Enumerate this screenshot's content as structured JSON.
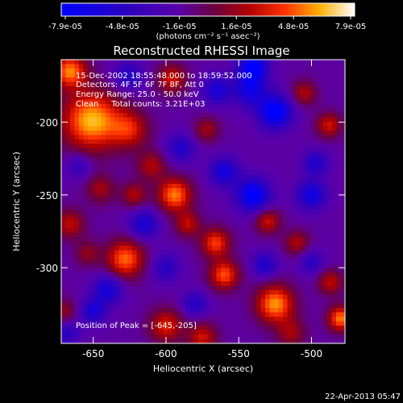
{
  "chart_data": {
    "type": "heatmap",
    "title": "Reconstructed RHESSI Image",
    "xlabel": "Heliocentric X (arcsec)",
    "ylabel": "Heliocentric Y (arcsec)",
    "xlim": [
      -672,
      -477
    ],
    "ylim": [
      -352,
      -157
    ],
    "x_ticks": [
      -650,
      -600,
      -550,
      -500
    ],
    "y_ticks": [
      -200,
      -250,
      -300
    ],
    "x_tick_labels": [
      "-650",
      "-600",
      "-550",
      "-500"
    ],
    "y_tick_labels": [
      "-200",
      "-250",
      "-300"
    ],
    "colorbar": {
      "min": -7.9e-05,
      "max": 7.9e-05,
      "tick_labels": [
        "-7.9e-05",
        "-4.8e-05",
        "-1.6e-05",
        "1.6e-05",
        "4.8e-05",
        "7.9e-05"
      ],
      "unit_label": "(photons cm⁻² s⁻¹ asec⁻²)"
    },
    "annotations": {
      "time_range": "15-Dec-2002 18:55:48.000 to 18:59:52.000",
      "detectors": "Detectors: 4F 5F 6F 7F 8F, Att 0",
      "energy_range": "Energy Range: 25.0 - 50.0 keV",
      "clean_counts": "Clean     Total counts: 3.21E+03",
      "peak": "Position of Peak = [-645,-205]"
    },
    "peak_position": [
      -645,
      -205
    ],
    "sources": [
      {
        "x": -651,
        "y": -199,
        "amp": 0.98,
        "w": 14
      },
      {
        "x": -666,
        "y": -165,
        "amp": 0.85,
        "w": 8
      },
      {
        "x": -625,
        "y": -205,
        "amp": 0.55,
        "w": 9
      },
      {
        "x": -610,
        "y": -230,
        "amp": 0.45,
        "w": 7
      },
      {
        "x": -594,
        "y": -250,
        "amp": 0.85,
        "w": 8
      },
      {
        "x": -596,
        "y": -170,
        "amp": 0.55,
        "w": 7
      },
      {
        "x": -622,
        "y": -250,
        "amp": 0.45,
        "w": 6
      },
      {
        "x": -645,
        "y": -246,
        "amp": 0.4,
        "w": 7
      },
      {
        "x": -666,
        "y": -270,
        "amp": 0.5,
        "w": 7
      },
      {
        "x": -628,
        "y": -294,
        "amp": 0.8,
        "w": 9
      },
      {
        "x": -654,
        "y": -290,
        "amp": 0.35,
        "w": 6
      },
      {
        "x": -566,
        "y": -283,
        "amp": 0.7,
        "w": 7
      },
      {
        "x": -560,
        "y": -305,
        "amp": 0.75,
        "w": 7
      },
      {
        "x": -530,
        "y": -268,
        "amp": 0.55,
        "w": 6
      },
      {
        "x": -510,
        "y": -283,
        "amp": 0.45,
        "w": 6
      },
      {
        "x": -525,
        "y": -325,
        "amp": 0.9,
        "w": 9
      },
      {
        "x": -600,
        "y": -340,
        "amp": 0.6,
        "w": 8
      },
      {
        "x": -575,
        "y": -348,
        "amp": 0.55,
        "w": 7
      },
      {
        "x": -514,
        "y": -345,
        "amp": 0.4,
        "w": 7
      },
      {
        "x": -480,
        "y": -335,
        "amp": 0.85,
        "w": 6
      },
      {
        "x": -487,
        "y": -310,
        "amp": 0.5,
        "w": 6
      },
      {
        "x": -505,
        "y": -180,
        "amp": 0.45,
        "w": 6
      },
      {
        "x": -488,
        "y": -202,
        "amp": 0.55,
        "w": 6
      },
      {
        "x": -572,
        "y": -205,
        "amp": 0.4,
        "w": 6
      },
      {
        "x": -585,
        "y": -270,
        "amp": 0.5,
        "w": 6
      },
      {
        "x": -670,
        "y": -330,
        "amp": 0.35,
        "w": 6
      },
      {
        "x": -540,
        "y": -162,
        "amp": -0.85,
        "w": 7
      },
      {
        "x": -525,
        "y": -193,
        "amp": -0.9,
        "w": 8
      },
      {
        "x": -542,
        "y": -178,
        "amp": -0.6,
        "w": 8
      },
      {
        "x": -565,
        "y": -178,
        "amp": -0.55,
        "w": 7
      },
      {
        "x": -540,
        "y": -250,
        "amp": -0.85,
        "w": 8
      },
      {
        "x": -560,
        "y": -234,
        "amp": -0.6,
        "w": 7
      },
      {
        "x": -500,
        "y": -250,
        "amp": -0.65,
        "w": 7
      },
      {
        "x": -497,
        "y": -228,
        "amp": -0.5,
        "w": 6
      },
      {
        "x": -590,
        "y": -218,
        "amp": -0.45,
        "w": 7
      },
      {
        "x": -615,
        "y": -270,
        "amp": -0.55,
        "w": 7
      },
      {
        "x": -640,
        "y": -315,
        "amp": -0.6,
        "w": 7
      },
      {
        "x": -650,
        "y": -330,
        "amp": -0.55,
        "w": 6
      },
      {
        "x": -600,
        "y": -300,
        "amp": -0.4,
        "w": 7
      },
      {
        "x": -580,
        "y": -325,
        "amp": -0.45,
        "w": 6
      },
      {
        "x": -532,
        "y": -298,
        "amp": -0.5,
        "w": 6
      },
      {
        "x": -500,
        "y": -296,
        "amp": -0.4,
        "w": 6
      },
      {
        "x": -660,
        "y": -230,
        "amp": -0.35,
        "w": 6
      },
      {
        "x": -626,
        "y": -168,
        "amp": -0.45,
        "w": 7
      },
      {
        "x": -668,
        "y": -345,
        "amp": -0.4,
        "w": 6
      }
    ]
  },
  "footer": {
    "timestamp": "22-Apr-2013 05:47"
  }
}
